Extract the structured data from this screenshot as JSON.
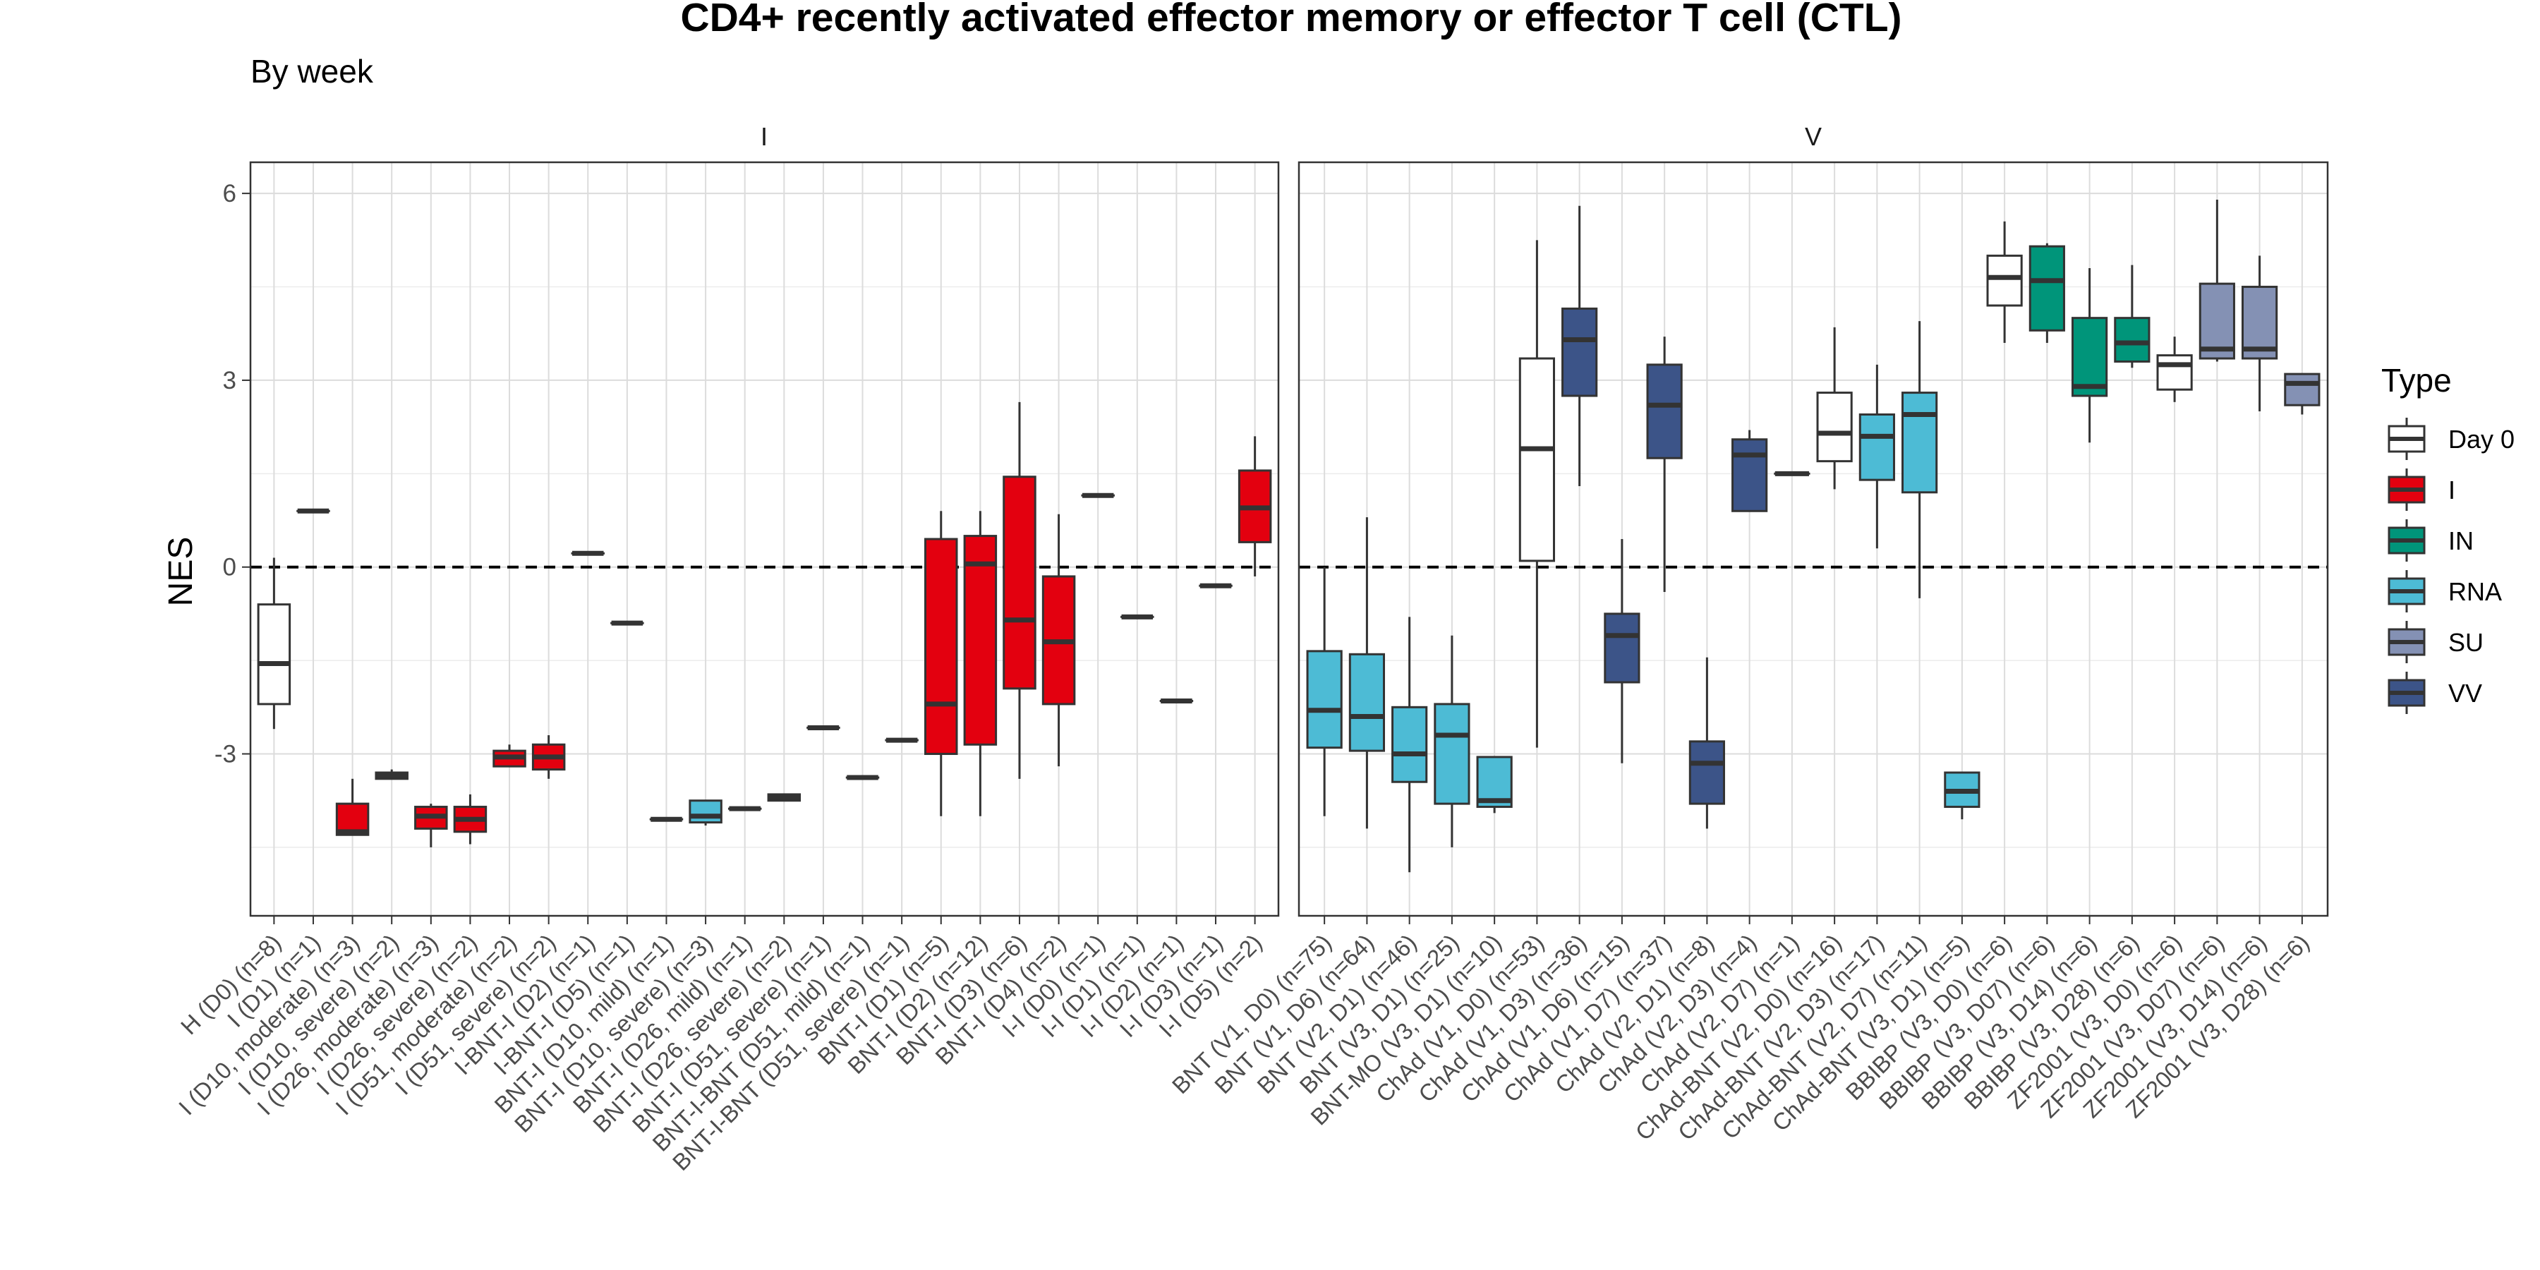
{
  "chart_data": {
    "type": "box",
    "title": "CD4+ recently activated effector memory or effector T cell (CTL)",
    "subtitle": "By week",
    "ylabel": "NES",
    "xlabel": "",
    "ylim": [
      -5.6,
      6.5
    ],
    "yticks": [
      -3,
      0,
      3,
      6
    ],
    "reference_line": 0,
    "grid": true,
    "legend": {
      "title": "Type",
      "position": "right",
      "entries": [
        {
          "label": "Day 0",
          "color": "#FFFFFF"
        },
        {
          "label": "I",
          "color": "#E3000F"
        },
        {
          "label": "IN",
          "color": "#00957A"
        },
        {
          "label": "RNA",
          "color": "#4DBBD5"
        },
        {
          "label": "SU",
          "color": "#8491B4"
        },
        {
          "label": "VV",
          "color": "#3C5488"
        }
      ]
    },
    "panels": [
      {
        "label": "I",
        "categories": [
          {
            "label": "H (D0) (n=8)",
            "type": "Day 0",
            "q1": -2.2,
            "median": -1.55,
            "q3": -0.6,
            "lo": -2.6,
            "hi": 0.15
          },
          {
            "label": "I (D1) (n=1)",
            "type": "I",
            "q1": 0.9,
            "median": 0.9,
            "q3": 0.9,
            "lo": 0.9,
            "hi": 0.9
          },
          {
            "label": "I (D10, moderate) (n=3)",
            "type": "I",
            "q1": -4.3,
            "median": -4.25,
            "q3": -3.8,
            "lo": -4.3,
            "hi": -3.4
          },
          {
            "label": "I (D10, severe) (n=2)",
            "type": "I",
            "q1": -3.4,
            "median": -3.35,
            "q3": -3.3,
            "lo": -3.4,
            "hi": -3.25
          },
          {
            "label": "I (D26, moderate) (n=3)",
            "type": "I",
            "q1": -4.2,
            "median": -4.0,
            "q3": -3.85,
            "lo": -4.5,
            "hi": -3.8
          },
          {
            "label": "I (D26, severe) (n=2)",
            "type": "I",
            "q1": -4.25,
            "median": -4.05,
            "q3": -3.85,
            "lo": -4.45,
            "hi": -3.65
          },
          {
            "label": "I (D51, moderate) (n=2)",
            "type": "I",
            "q1": -3.2,
            "median": -3.05,
            "q3": -2.95,
            "lo": -3.2,
            "hi": -2.85
          },
          {
            "label": "I (D51, severe) (n=2)",
            "type": "I",
            "q1": -3.25,
            "median": -3.05,
            "q3": -2.85,
            "lo": -3.4,
            "hi": -2.7
          },
          {
            "label": "I-BNT-I (D2) (n=1)",
            "type": "I",
            "q1": 0.22,
            "median": 0.22,
            "q3": 0.22,
            "lo": 0.22,
            "hi": 0.22
          },
          {
            "label": "I-BNT-I (D5) (n=1)",
            "type": "I",
            "q1": -0.9,
            "median": -0.9,
            "q3": -0.9,
            "lo": -0.9,
            "hi": -0.9
          },
          {
            "label": "BNT-I (D10, mild) (n=1)",
            "type": "I",
            "q1": -4.05,
            "median": -4.05,
            "q3": -4.05,
            "lo": -4.05,
            "hi": -4.05
          },
          {
            "label": "BNT-I (D10, severe) (n=3)",
            "type": "RNA",
            "q1": -4.1,
            "median": -4.0,
            "q3": -3.75,
            "lo": -4.15,
            "hi": -3.75
          },
          {
            "label": "BNT-I (D26, mild) (n=1)",
            "type": "I",
            "q1": -3.88,
            "median": -3.88,
            "q3": -3.88,
            "lo": -3.88,
            "hi": -3.88
          },
          {
            "label": "BNT-I (D26, severe) (n=2)",
            "type": "I",
            "q1": -3.75,
            "median": -3.7,
            "q3": -3.65,
            "lo": -3.75,
            "hi": -3.65
          },
          {
            "label": "BNT-I (D51, severe) (n=1)",
            "type": "I",
            "q1": -2.58,
            "median": -2.58,
            "q3": -2.58,
            "lo": -2.58,
            "hi": -2.58
          },
          {
            "label": "BNT-I-BNT (D51, mild) (n=1)",
            "type": "I",
            "q1": -3.38,
            "median": -3.38,
            "q3": -3.38,
            "lo": -3.38,
            "hi": -3.38
          },
          {
            "label": "BNT-I-BNT (D51, severe) (n=1)",
            "type": "I",
            "q1": -2.78,
            "median": -2.78,
            "q3": -2.78,
            "lo": -2.78,
            "hi": -2.78
          },
          {
            "label": "BNT-I (D1) (n=5)",
            "type": "I",
            "q1": -3.0,
            "median": -2.2,
            "q3": 0.45,
            "lo": -4.0,
            "hi": 0.9
          },
          {
            "label": "BNT-I (D2) (n=12)",
            "type": "I",
            "q1": -2.85,
            "median": 0.05,
            "q3": 0.5,
            "lo": -4.0,
            "hi": 0.9
          },
          {
            "label": "BNT-I (D3) (n=6)",
            "type": "I",
            "q1": -1.95,
            "median": -0.85,
            "q3": 1.45,
            "lo": -3.4,
            "hi": 2.65
          },
          {
            "label": "BNT-I (D4) (n=2)",
            "type": "I",
            "q1": -2.2,
            "median": -1.2,
            "q3": -0.15,
            "lo": -3.2,
            "hi": 0.85
          },
          {
            "label": "I-I (D0) (n=1)",
            "type": "I",
            "q1": 1.15,
            "median": 1.15,
            "q3": 1.15,
            "lo": 1.15,
            "hi": 1.15
          },
          {
            "label": "I-I (D1) (n=1)",
            "type": "I",
            "q1": -0.8,
            "median": -0.8,
            "q3": -0.8,
            "lo": -0.8,
            "hi": -0.8
          },
          {
            "label": "I-I (D2) (n=1)",
            "type": "I",
            "q1": -2.15,
            "median": -2.15,
            "q3": -2.15,
            "lo": -2.15,
            "hi": -2.15
          },
          {
            "label": "I-I (D3) (n=1)",
            "type": "I",
            "q1": -0.3,
            "median": -0.3,
            "q3": -0.3,
            "lo": -0.3,
            "hi": -0.3
          },
          {
            "label": "I-I (D5) (n=2)",
            "type": "I",
            "q1": 0.4,
            "median": 0.95,
            "q3": 1.55,
            "lo": -0.15,
            "hi": 2.1
          }
        ]
      },
      {
        "label": "V",
        "categories": [
          {
            "label": "BNT (V1, D0) (n=75)",
            "type": "RNA",
            "q1": -2.9,
            "median": -2.3,
            "q3": -1.35,
            "lo": -4.0,
            "hi": 0.0
          },
          {
            "label": "BNT (V1, D6) (n=64)",
            "type": "RNA",
            "q1": -2.95,
            "median": -2.4,
            "q3": -1.4,
            "lo": -4.2,
            "hi": 0.8
          },
          {
            "label": "BNT (V2, D1) (n=46)",
            "type": "RNA",
            "q1": -3.45,
            "median": -3.0,
            "q3": -2.25,
            "lo": -4.9,
            "hi": -0.8
          },
          {
            "label": "BNT (V3, D1) (n=25)",
            "type": "RNA",
            "q1": -3.8,
            "median": -2.7,
            "q3": -2.2,
            "lo": -4.5,
            "hi": -1.1
          },
          {
            "label": "BNT-MO (V3, D1) (n=10)",
            "type": "RNA",
            "q1": -3.85,
            "median": -3.75,
            "q3": -3.05,
            "lo": -3.95,
            "hi": -3.05
          },
          {
            "label": "ChAd (V1, D0) (n=53)",
            "type": "Day 0",
            "q1": 0.1,
            "median": 1.9,
            "q3": 3.35,
            "lo": -2.9,
            "hi": 5.25
          },
          {
            "label": "ChAd (V1, D3) (n=36)",
            "type": "VV",
            "q1": 2.75,
            "median": 3.65,
            "q3": 4.15,
            "lo": 1.3,
            "hi": 5.8
          },
          {
            "label": "ChAd (V1, D6) (n=15)",
            "type": "VV",
            "q1": -1.85,
            "median": -1.1,
            "q3": -0.75,
            "lo": -3.15,
            "hi": 0.45
          },
          {
            "label": "ChAd (V1, D7) (n=37)",
            "type": "VV",
            "q1": 1.75,
            "median": 2.6,
            "q3": 3.25,
            "lo": -0.4,
            "hi": 3.7
          },
          {
            "label": "ChAd (V2, D1) (n=8)",
            "type": "VV",
            "q1": -3.8,
            "median": -3.15,
            "q3": -2.8,
            "lo": -4.2,
            "hi": -1.45
          },
          {
            "label": "ChAd (V2, D3) (n=4)",
            "type": "VV",
            "q1": 0.9,
            "median": 1.8,
            "q3": 2.05,
            "lo": 0.9,
            "hi": 2.2
          },
          {
            "label": "ChAd (V2, D7) (n=1)",
            "type": "VV",
            "q1": 1.5,
            "median": 1.5,
            "q3": 1.5,
            "lo": 1.5,
            "hi": 1.5
          },
          {
            "label": "ChAd-BNT (V2, D0) (n=16)",
            "type": "Day 0",
            "q1": 1.7,
            "median": 2.15,
            "q3": 2.8,
            "lo": 1.25,
            "hi": 3.85
          },
          {
            "label": "ChAd-BNT (V2, D3) (n=17)",
            "type": "RNA",
            "q1": 1.4,
            "median": 2.1,
            "q3": 2.45,
            "lo": 0.3,
            "hi": 3.25
          },
          {
            "label": "ChAd-BNT (V2, D7) (n=11)",
            "type": "RNA",
            "q1": 1.2,
            "median": 2.45,
            "q3": 2.8,
            "lo": -0.5,
            "hi": 3.95
          },
          {
            "label": "ChAd-BNT (V3, D1) (n=5)",
            "type": "RNA",
            "q1": -3.85,
            "median": -3.6,
            "q3": -3.3,
            "lo": -4.05,
            "hi": -3.3
          },
          {
            "label": "BBIBP (V3, D0) (n=6)",
            "type": "Day 0",
            "q1": 4.2,
            "median": 4.65,
            "q3": 5.0,
            "lo": 3.6,
            "hi": 5.55
          },
          {
            "label": "BBIBP (V3, D07) (n=6)",
            "type": "IN",
            "q1": 3.8,
            "median": 4.6,
            "q3": 5.15,
            "lo": 3.6,
            "hi": 5.2
          },
          {
            "label": "BBIBP (V3, D14) (n=6)",
            "type": "IN",
            "q1": 2.75,
            "median": 2.9,
            "q3": 4.0,
            "lo": 2.0,
            "hi": 4.8
          },
          {
            "label": "BBIBP (V3, D28) (n=6)",
            "type": "IN",
            "q1": 3.3,
            "median": 3.6,
            "q3": 4.0,
            "lo": 3.2,
            "hi": 4.85
          },
          {
            "label": "ZF2001 (V3, D0) (n=6)",
            "type": "Day 0",
            "q1": 2.85,
            "median": 3.25,
            "q3": 3.4,
            "lo": 2.65,
            "hi": 3.7
          },
          {
            "label": "ZF2001 (V3, D07) (n=6)",
            "type": "SU",
            "q1": 3.35,
            "median": 3.5,
            "q3": 4.55,
            "lo": 3.3,
            "hi": 5.9
          },
          {
            "label": "ZF2001 (V3, D14) (n=6)",
            "type": "SU",
            "q1": 3.35,
            "median": 3.5,
            "q3": 4.5,
            "lo": 2.5,
            "hi": 5.0
          },
          {
            "label": "ZF2001 (V3, D28) (n=6)",
            "type": "SU",
            "q1": 2.6,
            "median": 2.95,
            "q3": 3.1,
            "lo": 2.45,
            "hi": 3.1
          }
        ]
      }
    ]
  }
}
